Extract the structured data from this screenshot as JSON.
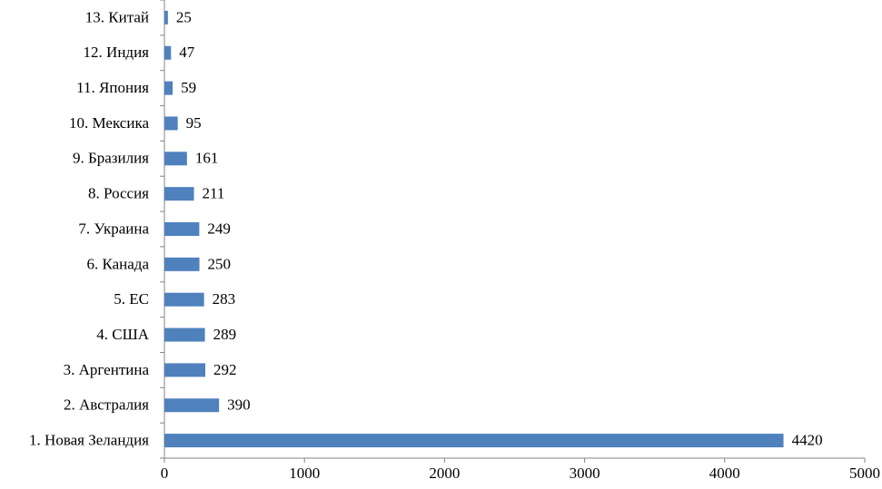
{
  "chart_data": {
    "type": "bar",
    "orientation": "horizontal",
    "categories": [
      "1. Новая Зеландия",
      "2. Австралия",
      "3. Аргентина",
      "4. США",
      "5. ЕС",
      "6. Канада",
      "7. Украина",
      "8. Россия",
      "9. Бразилия",
      "10. Мексика",
      "11. Япония",
      "12. Индия",
      "13. Китай"
    ],
    "values": [
      4420,
      390,
      292,
      289,
      283,
      250,
      249,
      211,
      161,
      95,
      59,
      47,
      25
    ],
    "color": "#4f81bd",
    "xlim": [
      0,
      5000
    ],
    "xticks": [
      0,
      1000,
      2000,
      3000,
      4000,
      5000
    ],
    "grid": false,
    "data_labels": true
  }
}
